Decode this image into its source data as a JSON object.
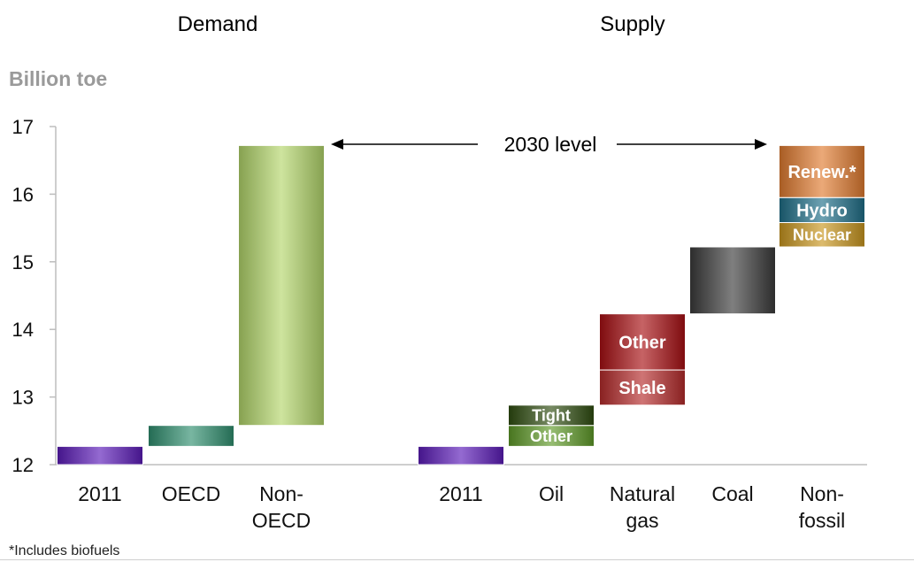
{
  "titles": {
    "demand": "Demand",
    "supply": "Supply"
  },
  "unit_label": "Billion toe",
  "footnote": "*Includes biofuels",
  "chart_data": {
    "type": "bar",
    "subtype": "waterfall",
    "ylabel": "Billion toe",
    "ylim": [
      12,
      17
    ],
    "yticks": [
      "12",
      "13",
      "14",
      "15",
      "16",
      "17"
    ],
    "grid": false,
    "annotation": "2030 level",
    "groups": [
      {
        "name": "Demand",
        "categories": [
          {
            "label": [
              "2011"
            ],
            "segments": [
              {
                "from": 12.0,
                "to": 12.27,
                "color": "#5a1ab8",
                "text": ""
              }
            ]
          },
          {
            "label": [
              "OECD"
            ],
            "segments": [
              {
                "from": 12.27,
                "to": 12.58,
                "color": "#2f8f6f",
                "text": ""
              }
            ]
          },
          {
            "label": [
              "Non-",
              "OECD"
            ],
            "segments": [
              {
                "from": 12.58,
                "to": 16.72,
                "color": "#b3d66a",
                "text": ""
              }
            ]
          }
        ]
      },
      {
        "name": "Supply",
        "categories": [
          {
            "label": [
              "2011"
            ],
            "segments": [
              {
                "from": 12.0,
                "to": 12.27,
                "color": "#5a1ab8",
                "text": ""
              }
            ]
          },
          {
            "label": [
              "Oil"
            ],
            "segments": [
              {
                "from": 12.27,
                "to": 12.58,
                "color": "#5f9a28",
                "text": "Other"
              },
              {
                "from": 12.58,
                "to": 12.88,
                "color": "#2f4d10",
                "text": "Tight"
              }
            ]
          },
          {
            "label": [
              "Natural",
              "gas"
            ],
            "segments": [
              {
                "from": 12.88,
                "to": 13.4,
                "color": "#b52a2a",
                "text": "Shale"
              },
              {
                "from": 13.4,
                "to": 14.23,
                "color": "#a80f12",
                "text": "Other"
              }
            ]
          },
          {
            "label": [
              "Coal"
            ],
            "segments": [
              {
                "from": 14.23,
                "to": 15.22,
                "color": "#3a3a3a",
                "text": ""
              }
            ]
          },
          {
            "label": [
              "Non-",
              "fossil"
            ],
            "segments": [
              {
                "from": 15.22,
                "to": 15.58,
                "color": "#c9961e",
                "text": "Nuclear"
              },
              {
                "from": 15.58,
                "to": 15.95,
                "color": "#1f6f88",
                "text": "Hydro"
              },
              {
                "from": 15.95,
                "to": 16.72,
                "color": "#e07a2f",
                "text": "Renew.*"
              }
            ]
          }
        ]
      }
    ]
  }
}
